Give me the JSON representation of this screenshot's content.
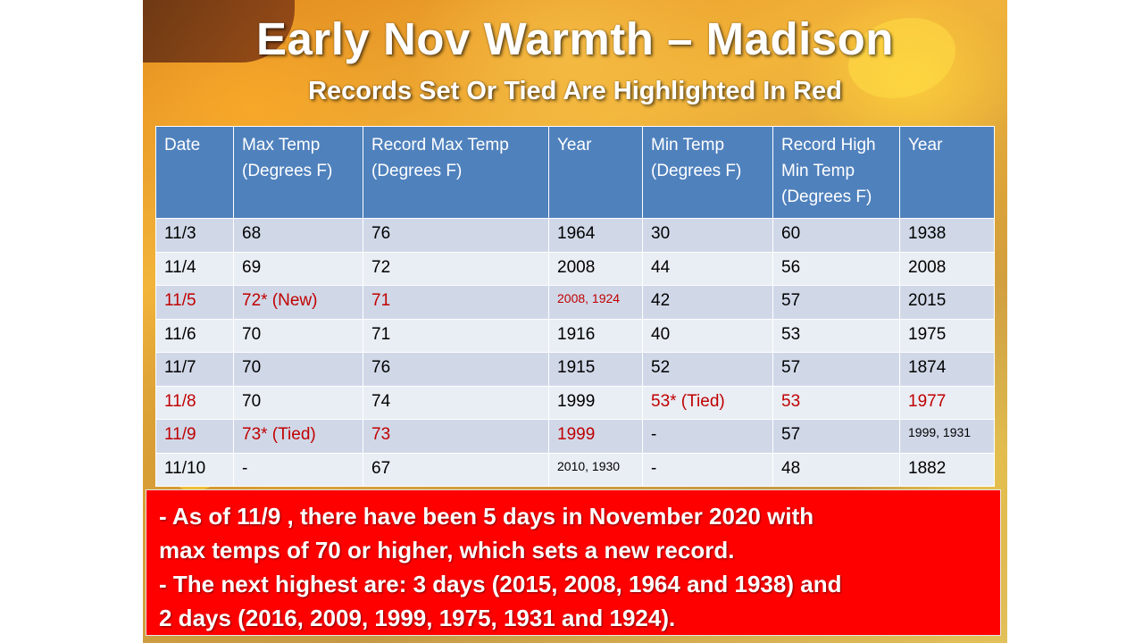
{
  "title": "Early Nov Warmth – Madison",
  "subtitle": "Records Set Or Tied Are Highlighted In Red",
  "table": {
    "headers": [
      "Date",
      "Max Temp (Degrees F)",
      "Record Max Temp (Degrees F)",
      "Year",
      "Min Temp (Degrees F)",
      "Record High Min Temp (Degrees F)",
      "Year"
    ],
    "rows": [
      {
        "cells": [
          "11/3",
          "68",
          "76",
          "1964",
          "30",
          "60",
          "1938"
        ],
        "red": [],
        "small": []
      },
      {
        "cells": [
          "11/4",
          "69",
          "72",
          "2008",
          "44",
          "56",
          "2008"
        ],
        "red": [],
        "small": []
      },
      {
        "cells": [
          "11/5",
          "72* (New)",
          "71",
          "2008, 1924",
          "42",
          "57",
          "2015"
        ],
        "red": [
          0,
          1,
          2,
          3
        ],
        "small": [
          3
        ]
      },
      {
        "cells": [
          "11/6",
          "70",
          "71",
          "1916",
          "40",
          "53",
          "1975"
        ],
        "red": [],
        "small": []
      },
      {
        "cells": [
          "11/7",
          "70",
          "76",
          "1915",
          "52",
          "57",
          "1874"
        ],
        "red": [],
        "small": []
      },
      {
        "cells": [
          "11/8",
          "70",
          "74",
          "1999",
          "53* (Tied)",
          "53",
          "1977"
        ],
        "red": [
          0,
          4,
          5,
          6
        ],
        "small": []
      },
      {
        "cells": [
          "11/9",
          "73* (Tied)",
          "73",
          "1999",
          "-",
          "57",
          "1999, 1931"
        ],
        "red": [
          0,
          1,
          2,
          3
        ],
        "small": [
          6
        ]
      },
      {
        "cells": [
          "11/10",
          "-",
          "67",
          "2010, 1930",
          "-",
          "48",
          "1882"
        ],
        "red": [],
        "small": [
          3
        ]
      }
    ]
  },
  "notes": [
    "- As of 11/9 , there have been 5 days in November 2020 with",
    "max temps of 70 or higher, which sets a new record.",
    "- The next highest are: 3 days (2015, 2008, 1964 and 1938) and",
    "2 days (2016, 2009, 1999, 1975, 1931 and 1924)."
  ],
  "colors": {
    "header_bg": "#4f81bd",
    "row_odd_bg": "#d0d8e8",
    "row_even_bg": "#e9edf4",
    "record_text": "#c00000",
    "note_bg": "#ff0000"
  },
  "background": "autumn-leaves-image"
}
